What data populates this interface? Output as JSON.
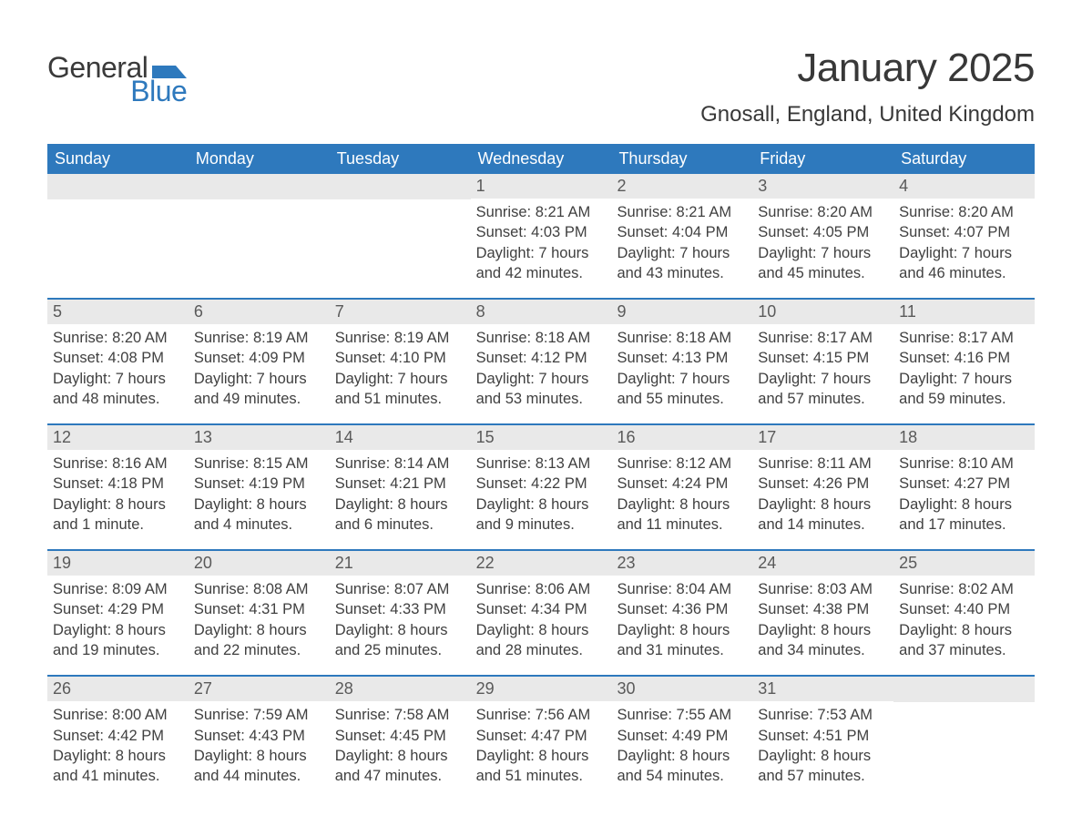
{
  "logo": {
    "text_general": "General",
    "text_blue": "Blue",
    "shape_color": "#2e79bd"
  },
  "title": "January 2025",
  "location": "Gnosall, England, United Kingdom",
  "colors": {
    "header_bg": "#2e79bd",
    "header_text": "#ffffff",
    "daynum_bg": "#e9e9e9",
    "daynum_text": "#5a5a5a",
    "body_text": "#404040",
    "week_divider": "#2e79bd",
    "page_bg": "#ffffff"
  },
  "typography": {
    "title_fontsize": 44,
    "location_fontsize": 24,
    "weekday_fontsize": 18,
    "daynum_fontsize": 18,
    "body_fontsize": 16.5,
    "font_family": "Arial"
  },
  "weekdays": [
    "Sunday",
    "Monday",
    "Tuesday",
    "Wednesday",
    "Thursday",
    "Friday",
    "Saturday"
  ],
  "weeks": [
    [
      {
        "day": null
      },
      {
        "day": null
      },
      {
        "day": null
      },
      {
        "day": "1",
        "sunrise": "Sunrise: 8:21 AM",
        "sunset": "Sunset: 4:03 PM",
        "daylight": "Daylight: 7 hours and 42 minutes."
      },
      {
        "day": "2",
        "sunrise": "Sunrise: 8:21 AM",
        "sunset": "Sunset: 4:04 PM",
        "daylight": "Daylight: 7 hours and 43 minutes."
      },
      {
        "day": "3",
        "sunrise": "Sunrise: 8:20 AM",
        "sunset": "Sunset: 4:05 PM",
        "daylight": "Daylight: 7 hours and 45 minutes."
      },
      {
        "day": "4",
        "sunrise": "Sunrise: 8:20 AM",
        "sunset": "Sunset: 4:07 PM",
        "daylight": "Daylight: 7 hours and 46 minutes."
      }
    ],
    [
      {
        "day": "5",
        "sunrise": "Sunrise: 8:20 AM",
        "sunset": "Sunset: 4:08 PM",
        "daylight": "Daylight: 7 hours and 48 minutes."
      },
      {
        "day": "6",
        "sunrise": "Sunrise: 8:19 AM",
        "sunset": "Sunset: 4:09 PM",
        "daylight": "Daylight: 7 hours and 49 minutes."
      },
      {
        "day": "7",
        "sunrise": "Sunrise: 8:19 AM",
        "sunset": "Sunset: 4:10 PM",
        "daylight": "Daylight: 7 hours and 51 minutes."
      },
      {
        "day": "8",
        "sunrise": "Sunrise: 8:18 AM",
        "sunset": "Sunset: 4:12 PM",
        "daylight": "Daylight: 7 hours and 53 minutes."
      },
      {
        "day": "9",
        "sunrise": "Sunrise: 8:18 AM",
        "sunset": "Sunset: 4:13 PM",
        "daylight": "Daylight: 7 hours and 55 minutes."
      },
      {
        "day": "10",
        "sunrise": "Sunrise: 8:17 AM",
        "sunset": "Sunset: 4:15 PM",
        "daylight": "Daylight: 7 hours and 57 minutes."
      },
      {
        "day": "11",
        "sunrise": "Sunrise: 8:17 AM",
        "sunset": "Sunset: 4:16 PM",
        "daylight": "Daylight: 7 hours and 59 minutes."
      }
    ],
    [
      {
        "day": "12",
        "sunrise": "Sunrise: 8:16 AM",
        "sunset": "Sunset: 4:18 PM",
        "daylight": "Daylight: 8 hours and 1 minute."
      },
      {
        "day": "13",
        "sunrise": "Sunrise: 8:15 AM",
        "sunset": "Sunset: 4:19 PM",
        "daylight": "Daylight: 8 hours and 4 minutes."
      },
      {
        "day": "14",
        "sunrise": "Sunrise: 8:14 AM",
        "sunset": "Sunset: 4:21 PM",
        "daylight": "Daylight: 8 hours and 6 minutes."
      },
      {
        "day": "15",
        "sunrise": "Sunrise: 8:13 AM",
        "sunset": "Sunset: 4:22 PM",
        "daylight": "Daylight: 8 hours and 9 minutes."
      },
      {
        "day": "16",
        "sunrise": "Sunrise: 8:12 AM",
        "sunset": "Sunset: 4:24 PM",
        "daylight": "Daylight: 8 hours and 11 minutes."
      },
      {
        "day": "17",
        "sunrise": "Sunrise: 8:11 AM",
        "sunset": "Sunset: 4:26 PM",
        "daylight": "Daylight: 8 hours and 14 minutes."
      },
      {
        "day": "18",
        "sunrise": "Sunrise: 8:10 AM",
        "sunset": "Sunset: 4:27 PM",
        "daylight": "Daylight: 8 hours and 17 minutes."
      }
    ],
    [
      {
        "day": "19",
        "sunrise": "Sunrise: 8:09 AM",
        "sunset": "Sunset: 4:29 PM",
        "daylight": "Daylight: 8 hours and 19 minutes."
      },
      {
        "day": "20",
        "sunrise": "Sunrise: 8:08 AM",
        "sunset": "Sunset: 4:31 PM",
        "daylight": "Daylight: 8 hours and 22 minutes."
      },
      {
        "day": "21",
        "sunrise": "Sunrise: 8:07 AM",
        "sunset": "Sunset: 4:33 PM",
        "daylight": "Daylight: 8 hours and 25 minutes."
      },
      {
        "day": "22",
        "sunrise": "Sunrise: 8:06 AM",
        "sunset": "Sunset: 4:34 PM",
        "daylight": "Daylight: 8 hours and 28 minutes."
      },
      {
        "day": "23",
        "sunrise": "Sunrise: 8:04 AM",
        "sunset": "Sunset: 4:36 PM",
        "daylight": "Daylight: 8 hours and 31 minutes."
      },
      {
        "day": "24",
        "sunrise": "Sunrise: 8:03 AM",
        "sunset": "Sunset: 4:38 PM",
        "daylight": "Daylight: 8 hours and 34 minutes."
      },
      {
        "day": "25",
        "sunrise": "Sunrise: 8:02 AM",
        "sunset": "Sunset: 4:40 PM",
        "daylight": "Daylight: 8 hours and 37 minutes."
      }
    ],
    [
      {
        "day": "26",
        "sunrise": "Sunrise: 8:00 AM",
        "sunset": "Sunset: 4:42 PM",
        "daylight": "Daylight: 8 hours and 41 minutes."
      },
      {
        "day": "27",
        "sunrise": "Sunrise: 7:59 AM",
        "sunset": "Sunset: 4:43 PM",
        "daylight": "Daylight: 8 hours and 44 minutes."
      },
      {
        "day": "28",
        "sunrise": "Sunrise: 7:58 AM",
        "sunset": "Sunset: 4:45 PM",
        "daylight": "Daylight: 8 hours and 47 minutes."
      },
      {
        "day": "29",
        "sunrise": "Sunrise: 7:56 AM",
        "sunset": "Sunset: 4:47 PM",
        "daylight": "Daylight: 8 hours and 51 minutes."
      },
      {
        "day": "30",
        "sunrise": "Sunrise: 7:55 AM",
        "sunset": "Sunset: 4:49 PM",
        "daylight": "Daylight: 8 hours and 54 minutes."
      },
      {
        "day": "31",
        "sunrise": "Sunrise: 7:53 AM",
        "sunset": "Sunset: 4:51 PM",
        "daylight": "Daylight: 8 hours and 57 minutes."
      },
      {
        "day": null
      }
    ]
  ]
}
